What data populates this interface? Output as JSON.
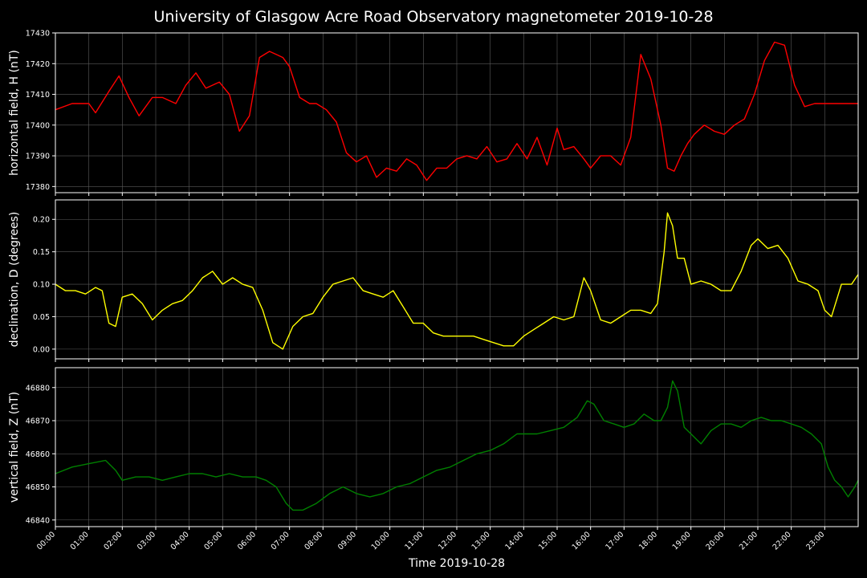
{
  "title": "University of Glasgow Acre Road Observatory magnetometer 2019-10-28",
  "colors": {
    "background": "#000000",
    "axes": "#ffffff",
    "grid": "#5a5a5a",
    "H": "#ff0000",
    "D": "#ffff00",
    "Z": "#008000"
  },
  "chart_data": [
    {
      "type": "line",
      "ylabel": "horizontal field, H (nT)",
      "ylim": [
        17378,
        17430
      ],
      "yticks": [
        17380,
        17390,
        17400,
        17410,
        17420,
        17430
      ],
      "grid": true,
      "xlim_hours": [
        0,
        24
      ],
      "color": "#ff0000",
      "series": [
        {
          "x": [
            0,
            0.5,
            1,
            1.2,
            1.6,
            1.9,
            2.2,
            2.5,
            2.9,
            3.2,
            3.6,
            3.9,
            4.2,
            4.5,
            4.9,
            5.2,
            5.5,
            5.8,
            6.1,
            6.4,
            6.6,
            6.8,
            7.0,
            7.3,
            7.6,
            7.8,
            8.1,
            8.4,
            8.7,
            9.0,
            9.3,
            9.6,
            9.9,
            10.2,
            10.5,
            10.8,
            11.1,
            11.4,
            11.7,
            12.0,
            12.3,
            12.6,
            12.9,
            13.2,
            13.5,
            13.8,
            14.1,
            14.4,
            14.7,
            15.0,
            15.2,
            15.5,
            15.8,
            16.0,
            16.3,
            16.6,
            16.9,
            17.2,
            17.5,
            17.8,
            18.1,
            18.3,
            18.5,
            18.7,
            18.9,
            19.1,
            19.4,
            19.7,
            20.0,
            20.3,
            20.6,
            20.9,
            21.2,
            21.5,
            21.8,
            22.1,
            22.4,
            22.7,
            23.0,
            23.3,
            23.5,
            23.7,
            23.9,
            24.0
          ],
          "y": [
            17405,
            17407,
            17407,
            17404,
            17411,
            17416,
            17409,
            17403,
            17409,
            17409,
            17407,
            17413,
            17417,
            17412,
            17414,
            17410,
            17398,
            17403,
            17422,
            17424,
            17423,
            17422,
            17419,
            17409,
            17407,
            17407,
            17405,
            17401,
            17391,
            17388,
            17390,
            17383,
            17386,
            17385,
            17389,
            17387,
            17382,
            17386,
            17386,
            17389,
            17390,
            17389,
            17393,
            17388,
            17389,
            17394,
            17389,
            17396,
            17387,
            17399,
            17392,
            17393,
            17389,
            17386,
            17390,
            17390,
            17387,
            17396,
            17423,
            17415,
            17400,
            17386,
            17385,
            17390,
            17394,
            17397,
            17400,
            17398,
            17397,
            17400,
            17402,
            17410,
            17421,
            17427,
            17426,
            17413,
            17406,
            17407,
            17407,
            17407,
            17407,
            17407,
            17407,
            17407
          ]
        }
      ]
    },
    {
      "type": "line",
      "ylabel": "declination, D (degrees)",
      "ylim": [
        -0.015,
        0.23
      ],
      "yticks": [
        0.0,
        0.05,
        0.1,
        0.15,
        0.2
      ],
      "ytick_labels": [
        "0.00",
        "0.05",
        "0.10",
        "0.15",
        "0.20"
      ],
      "grid": true,
      "xlim_hours": [
        0,
        24
      ],
      "color": "#ffff00",
      "series": [
        {
          "x": [
            0,
            0.3,
            0.6,
            0.9,
            1.2,
            1.4,
            1.6,
            1.8,
            2.0,
            2.3,
            2.6,
            2.9,
            3.2,
            3.5,
            3.8,
            4.1,
            4.4,
            4.7,
            5.0,
            5.3,
            5.6,
            5.9,
            6.2,
            6.5,
            6.8,
            7.1,
            7.4,
            7.7,
            8.0,
            8.3,
            8.6,
            8.9,
            9.2,
            9.5,
            9.8,
            10.1,
            10.4,
            10.7,
            11.0,
            11.3,
            11.6,
            11.9,
            12.2,
            12.5,
            12.8,
            13.1,
            13.4,
            13.7,
            14.0,
            14.3,
            14.6,
            14.9,
            15.2,
            15.5,
            15.8,
            16.0,
            16.3,
            16.6,
            16.9,
            17.2,
            17.5,
            17.8,
            18.0,
            18.2,
            18.3,
            18.45,
            18.6,
            18.8,
            19.0,
            19.3,
            19.6,
            19.9,
            20.2,
            20.5,
            20.8,
            21.0,
            21.3,
            21.6,
            21.9,
            22.2,
            22.5,
            22.8,
            23.0,
            23.2,
            23.5,
            23.8,
            24.0
          ],
          "y": [
            0.1,
            0.09,
            0.09,
            0.085,
            0.095,
            0.09,
            0.04,
            0.035,
            0.08,
            0.085,
            0.07,
            0.045,
            0.06,
            0.07,
            0.075,
            0.09,
            0.11,
            0.12,
            0.1,
            0.11,
            0.1,
            0.095,
            0.06,
            0.01,
            0.0,
            0.035,
            0.05,
            0.055,
            0.08,
            0.1,
            0.105,
            0.11,
            0.09,
            0.085,
            0.08,
            0.09,
            0.065,
            0.04,
            0.04,
            0.025,
            0.02,
            0.02,
            0.02,
            0.02,
            0.015,
            0.01,
            0.005,
            0.005,
            0.02,
            0.03,
            0.04,
            0.05,
            0.045,
            0.05,
            0.11,
            0.09,
            0.045,
            0.04,
            0.05,
            0.06,
            0.06,
            0.055,
            0.07,
            0.15,
            0.21,
            0.19,
            0.14,
            0.14,
            0.1,
            0.105,
            0.1,
            0.09,
            0.09,
            0.12,
            0.16,
            0.17,
            0.155,
            0.16,
            0.14,
            0.105,
            0.1,
            0.09,
            0.06,
            0.05,
            0.1,
            0.1,
            0.115
          ]
        }
      ]
    },
    {
      "type": "line",
      "ylabel": "vertical field, Z (nT)",
      "xlabel": "Time 2019-10-28",
      "ylim": [
        46838,
        46886
      ],
      "yticks": [
        46840,
        46850,
        46860,
        46870,
        46880
      ],
      "grid": true,
      "xlim_hours": [
        0,
        24
      ],
      "color": "#008000",
      "series": [
        {
          "x": [
            0,
            0.5,
            1.0,
            1.5,
            1.8,
            2.0,
            2.4,
            2.8,
            3.2,
            3.6,
            4.0,
            4.4,
            4.8,
            5.2,
            5.6,
            6.0,
            6.3,
            6.6,
            6.9,
            7.1,
            7.4,
            7.8,
            8.2,
            8.6,
            9.0,
            9.4,
            9.8,
            10.2,
            10.6,
            11.0,
            11.4,
            11.8,
            12.2,
            12.6,
            13.0,
            13.4,
            13.8,
            14.1,
            14.4,
            14.8,
            15.2,
            15.6,
            15.9,
            16.1,
            16.4,
            16.7,
            17.0,
            17.3,
            17.6,
            17.9,
            18.1,
            18.3,
            18.45,
            18.6,
            18.8,
            19.0,
            19.3,
            19.6,
            19.9,
            20.2,
            20.5,
            20.8,
            21.1,
            21.4,
            21.7,
            22.0,
            22.3,
            22.6,
            22.9,
            23.1,
            23.3,
            23.5,
            23.7,
            23.9,
            24.0
          ],
          "y": [
            46854,
            46856,
            46857,
            46858,
            46855,
            46852,
            46853,
            46853,
            46852,
            46853,
            46854,
            46854,
            46853,
            46854,
            46853,
            46853,
            46852,
            46850,
            46845,
            46843,
            46843,
            46845,
            46848,
            46850,
            46848,
            46847,
            46848,
            46850,
            46851,
            46853,
            46855,
            46856,
            46858,
            46860,
            46861,
            46863,
            46866,
            46866,
            46866,
            46867,
            46868,
            46871,
            46876,
            46875,
            46870,
            46869,
            46868,
            46869,
            46872,
            46870,
            46870,
            46874,
            46882,
            46879,
            46868,
            46866,
            46863,
            46867,
            46869,
            46869,
            46868,
            46870,
            46871,
            46870,
            46870,
            46869,
            46868,
            46866,
            46863,
            46856,
            46852,
            46850,
            46847,
            46850,
            46852
          ]
        }
      ]
    }
  ],
  "x_tick_labels": [
    "00:00",
    "01:00",
    "02:00",
    "03:00",
    "04:00",
    "05:00",
    "06:00",
    "07:00",
    "08:00",
    "09:00",
    "10:00",
    "11:00",
    "12:00",
    "13:00",
    "14:00",
    "15:00",
    "16:00",
    "17:00",
    "18:00",
    "19:00",
    "20:00",
    "21:00",
    "22:00",
    "23:00"
  ]
}
